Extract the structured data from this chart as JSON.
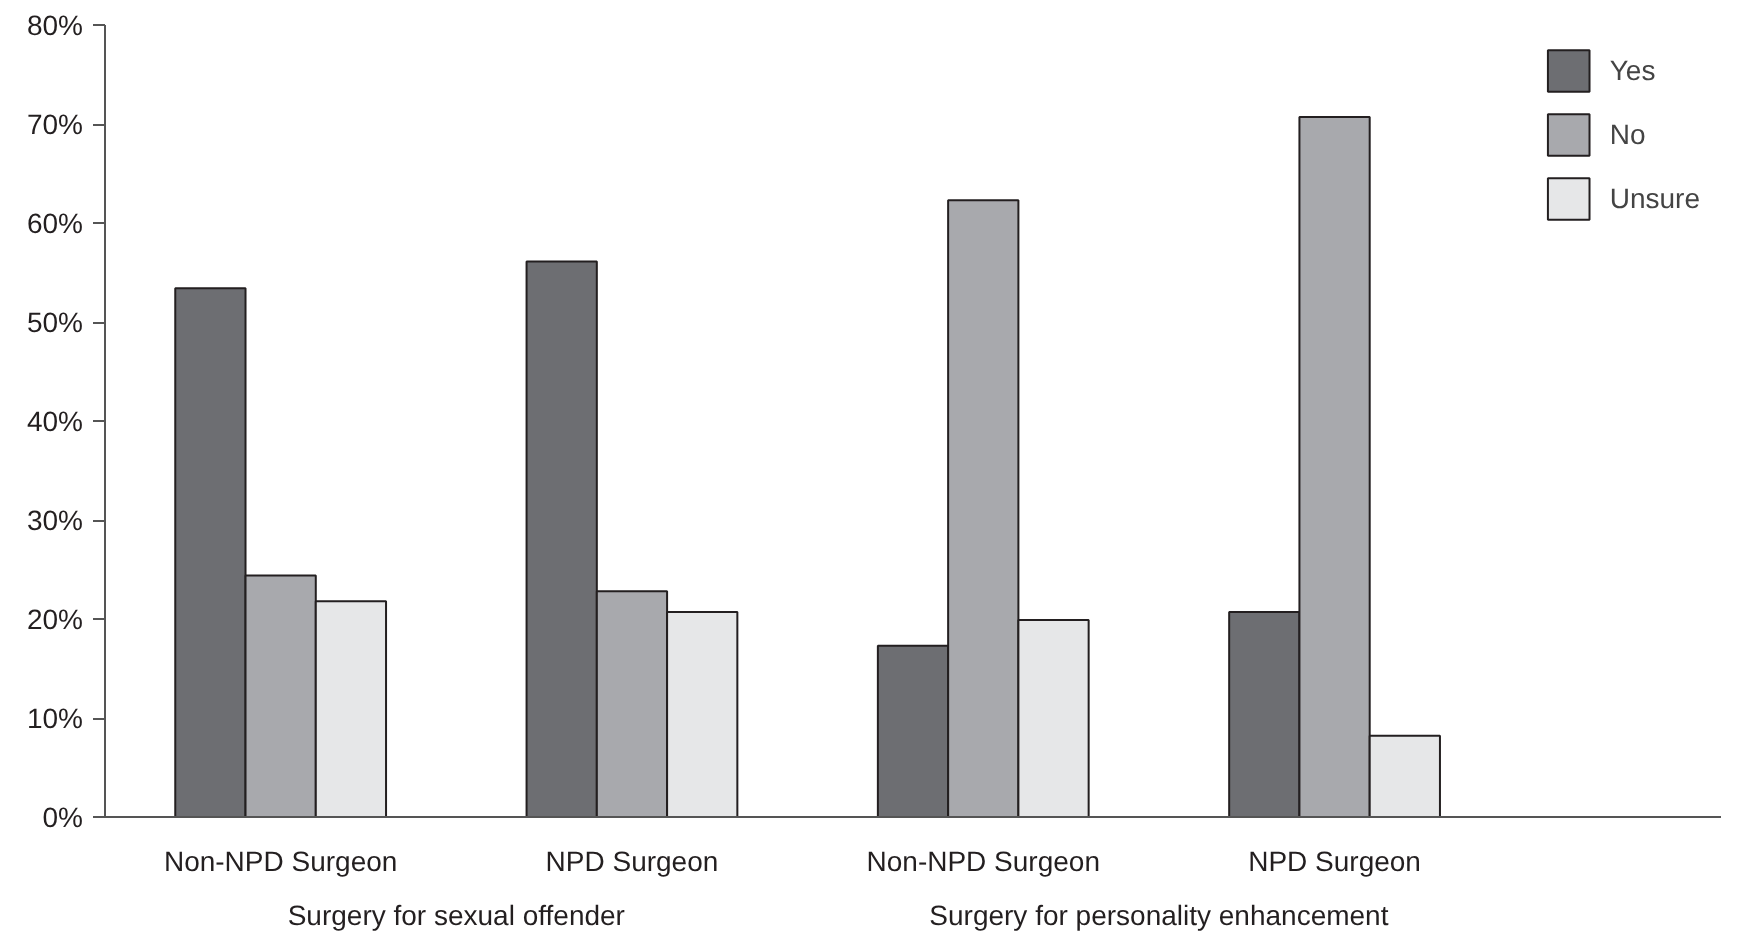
{
  "chart_data": {
    "type": "bar",
    "categories": [
      "Non-NPD Surgeon",
      "NPD Surgeon",
      "Non-NPD Surgeon",
      "NPD Surgeon"
    ],
    "series": [
      {
        "name": "Yes",
        "color": "#6d6e72",
        "values": [
          53.4,
          56.1,
          17.3,
          20.7
        ]
      },
      {
        "name": "No",
        "color": "#a8a9ad",
        "values": [
          24.4,
          22.8,
          62.3,
          70.7
        ]
      },
      {
        "name": "Unsure",
        "color": "#e6e7e8",
        "values": [
          21.8,
          20.7,
          19.9,
          8.2
        ]
      }
    ],
    "ylim": [
      0,
      80
    ],
    "yticks": [
      {
        "value": 0,
        "label": "0%"
      },
      {
        "value": 10,
        "label": "10%"
      },
      {
        "value": 20,
        "label": "20%"
      },
      {
        "value": 30,
        "label": "30%"
      },
      {
        "value": 40,
        "label": "40%"
      },
      {
        "value": 50,
        "label": "50%"
      },
      {
        "value": 60,
        "label": "60%"
      },
      {
        "value": 70,
        "label": "70%"
      },
      {
        "value": 80,
        "label": "80%"
      }
    ],
    "annotations": [
      "Surgery for sexual offender",
      "Surgery for personality enhancement"
    ],
    "grid": false,
    "legend": "top right"
  }
}
